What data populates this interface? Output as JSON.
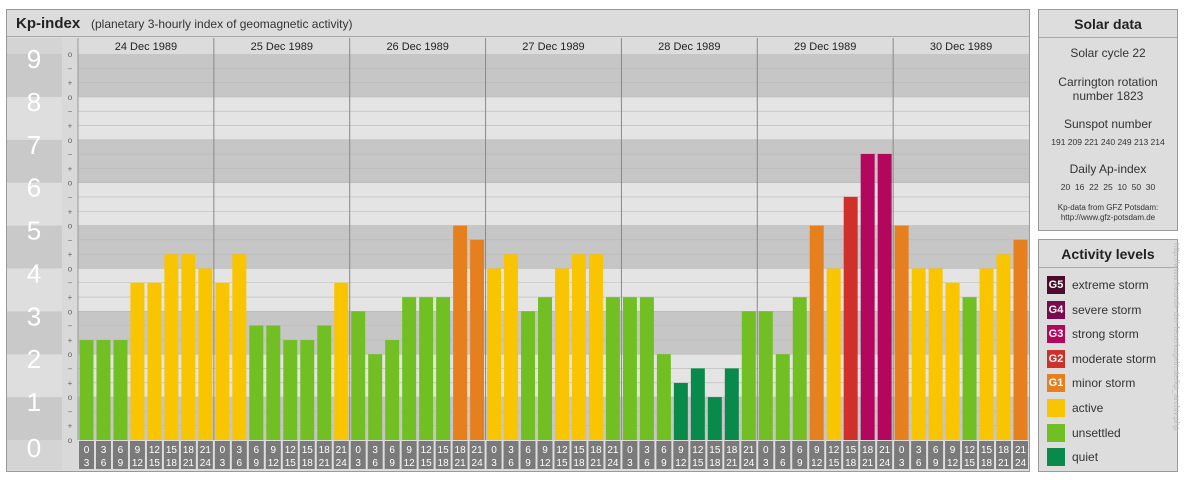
{
  "header": {
    "title": "Kp-index",
    "subtitle": "(planetary 3-hourly index of geomagnetic activity)"
  },
  "solar": {
    "heading": "Solar data",
    "cycle": "Solar cycle 22",
    "carrington_line1": "Carrington rotation",
    "carrington_line2": "number 1823",
    "sunspot_label": "Sunspot number",
    "sunspot_values": "191 209 221 240 249 213 214",
    "ap_label": "Daily Ap-index",
    "ap_values": "20  16  22  25  10  50  30",
    "source_line1": "Kp-data from GFZ Potsdam:",
    "source_line2": "http://www.gfz-potsdam.de"
  },
  "activity": {
    "heading": "Activity levels",
    "levels": [
      {
        "badge": "G5",
        "label": "extreme storm",
        "color": "#4a0c2a"
      },
      {
        "badge": "G4",
        "label": "severe storm",
        "color": "#7a0a4e"
      },
      {
        "badge": "G3",
        "label": "strong storm",
        "color": "#b3075e"
      },
      {
        "badge": "G2",
        "label": "moderate storm",
        "color": "#d0302a"
      },
      {
        "badge": "G1",
        "label": "minor storm",
        "color": "#e6801f"
      },
      {
        "badge": "",
        "label": "active",
        "color": "#f9c400"
      },
      {
        "badge": "",
        "label": "unsettled",
        "color": "#72bf23"
      },
      {
        "badge": "",
        "label": "quiet",
        "color": "#0a8a4a"
      }
    ]
  },
  "footer": {
    "url": "http://www.freunde-der-feuerkugeln.de/kp_archiv.php"
  },
  "chart_data": {
    "type": "bar",
    "title": "Kp-index",
    "ylabel": "",
    "ylim": [
      0,
      9
    ],
    "y_ticks": [
      "0",
      "1",
      "2",
      "3",
      "4",
      "5",
      "6",
      "7",
      "8",
      "9"
    ],
    "sub_ticks": [
      "o",
      "+",
      "−",
      "o"
    ],
    "days": [
      "24 Dec 1989",
      "25 Dec 1989",
      "26 Dec 1989",
      "27 Dec 1989",
      "28 Dec 1989",
      "29 Dec 1989",
      "30 Dec 1989"
    ],
    "interval_starts": [
      "0",
      "3",
      "6",
      "9",
      "12",
      "15",
      "18",
      "21"
    ],
    "interval_ends": [
      "3",
      "6",
      "9",
      "12",
      "15",
      "18",
      "21",
      "24"
    ],
    "values": [
      [
        2.33,
        2.33,
        2.33,
        3.67,
        3.67,
        4.33,
        4.33,
        4.0
      ],
      [
        3.67,
        4.33,
        2.67,
        2.67,
        2.33,
        2.33,
        2.67,
        3.67
      ],
      [
        3.0,
        2.0,
        2.33,
        3.33,
        3.33,
        3.33,
        5.0,
        4.67
      ],
      [
        4.0,
        4.33,
        3.0,
        3.33,
        4.0,
        4.33,
        4.33,
        3.33
      ],
      [
        3.33,
        3.33,
        2.0,
        1.33,
        1.67,
        1.0,
        1.67,
        3.0
      ],
      [
        3.0,
        2.0,
        3.33,
        5.0,
        4.0,
        5.67,
        6.67,
        6.67
      ],
      [
        5.0,
        4.0,
        4.0,
        3.67,
        3.33,
        4.0,
        4.33,
        4.67
      ]
    ],
    "level_colors": {
      "quiet": "#0a8a4a",
      "unsettled": "#72bf23",
      "active": "#f9c400",
      "G1": "#e6801f",
      "G2": "#d0302a",
      "G3": "#b3075e",
      "G4": "#7a0a4e",
      "G5": "#4a0c2a"
    },
    "grid": true
  }
}
